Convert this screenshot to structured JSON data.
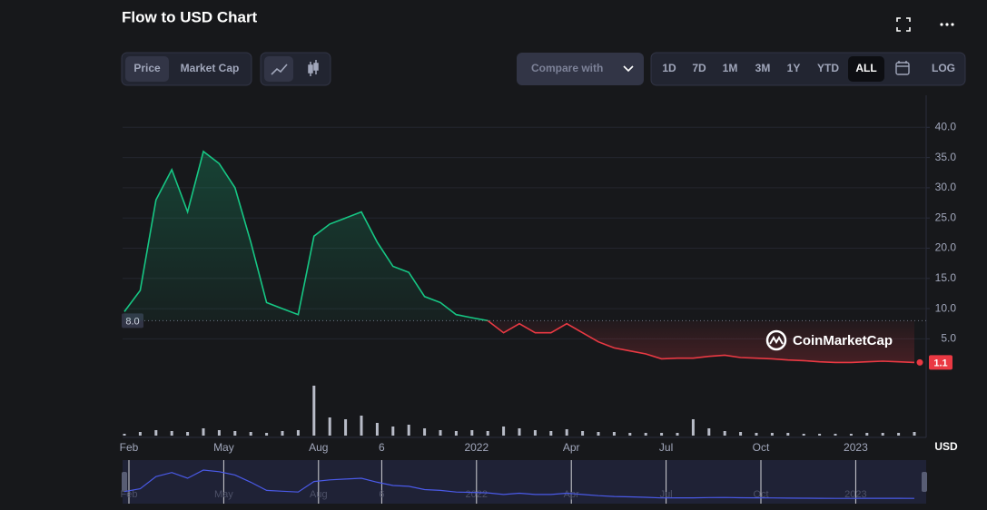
{
  "chart_data": {
    "type": "line",
    "title": "Flow to USD Chart",
    "controls": {
      "tabs": [
        "Price",
        "Market Cap"
      ],
      "compare": "Compare with",
      "ranges": [
        "1D",
        "7D",
        "1M",
        "3M",
        "1Y",
        "YTD",
        "ALL"
      ],
      "active_range": "ALL",
      "scale_button": "LOG"
    },
    "watermark": "CoinMarketCap",
    "y_unit": "USD",
    "log_scale": false,
    "grid": true,
    "categories": [
      "Feb",
      null,
      null,
      null,
      null,
      null,
      "May",
      null,
      null,
      null,
      null,
      null,
      "Aug",
      null,
      null,
      null,
      "6",
      null,
      null,
      null,
      null,
      null,
      "2022",
      null,
      null,
      null,
      null,
      null,
      "Apr",
      null,
      null,
      null,
      null,
      null,
      "Jul",
      null,
      null,
      null,
      null,
      null,
      "Oct",
      null,
      null,
      null,
      null,
      null,
      "2023",
      null,
      null,
      null,
      null
    ],
    "series": [
      {
        "name": "Price",
        "color": "#16c784",
        "negative_color": "#ea3943",
        "values": [
          9.5,
          13,
          28,
          33,
          26,
          36,
          34,
          30,
          21,
          11,
          10,
          9,
          22,
          24,
          25,
          26,
          21,
          17,
          16,
          12,
          11,
          9,
          8.5,
          8,
          6,
          7.5,
          6,
          6,
          7.5,
          6,
          4.5,
          3.5,
          3,
          2.5,
          1.7,
          1.8,
          1.8,
          2.1,
          2.3,
          1.9,
          1.8,
          1.7,
          1.5,
          1.4,
          1.2,
          1.1,
          1.1,
          1.2,
          1.3,
          1.2,
          1.1
        ],
        "value_labels": [
          null,
          null,
          null,
          null,
          null,
          null,
          null,
          null,
          null,
          null,
          null,
          null,
          null,
          null,
          null,
          null,
          null,
          null,
          null,
          null,
          null,
          null,
          null,
          null,
          null,
          null,
          null,
          null,
          null,
          null,
          null,
          null,
          null,
          null,
          null,
          null,
          null,
          null,
          null,
          null,
          null,
          null,
          null,
          null,
          null,
          null,
          null,
          null,
          null,
          null,
          "1.1"
        ]
      }
    ],
    "volume": {
      "color": "#b8bcc8",
      "values": [
        2,
        4,
        6,
        5,
        4,
        8,
        6,
        5,
        4,
        3,
        5,
        6,
        55,
        20,
        18,
        22,
        14,
        10,
        12,
        8,
        6,
        5,
        6,
        5,
        10,
        8,
        6,
        5,
        7,
        5,
        4,
        4,
        3,
        3,
        3,
        3,
        18,
        8,
        5,
        4,
        3,
        3,
        3,
        2,
        2,
        2,
        2,
        3,
        3,
        3,
        4
      ]
    },
    "baseline": {
      "value": 8,
      "label": "8.0"
    },
    "ylim": [
      -2,
      45
    ],
    "yticks": [
      {
        "value": 5,
        "label": "5.0"
      },
      {
        "value": 10,
        "label": "10.0"
      },
      {
        "value": 15,
        "label": "15.0"
      },
      {
        "value": 20,
        "label": "20.0"
      },
      {
        "value": 25,
        "label": "25.0"
      },
      {
        "value": 30,
        "label": "30.0"
      },
      {
        "value": 35,
        "label": "35.0"
      },
      {
        "value": 40,
        "label": "40.0"
      }
    ]
  }
}
